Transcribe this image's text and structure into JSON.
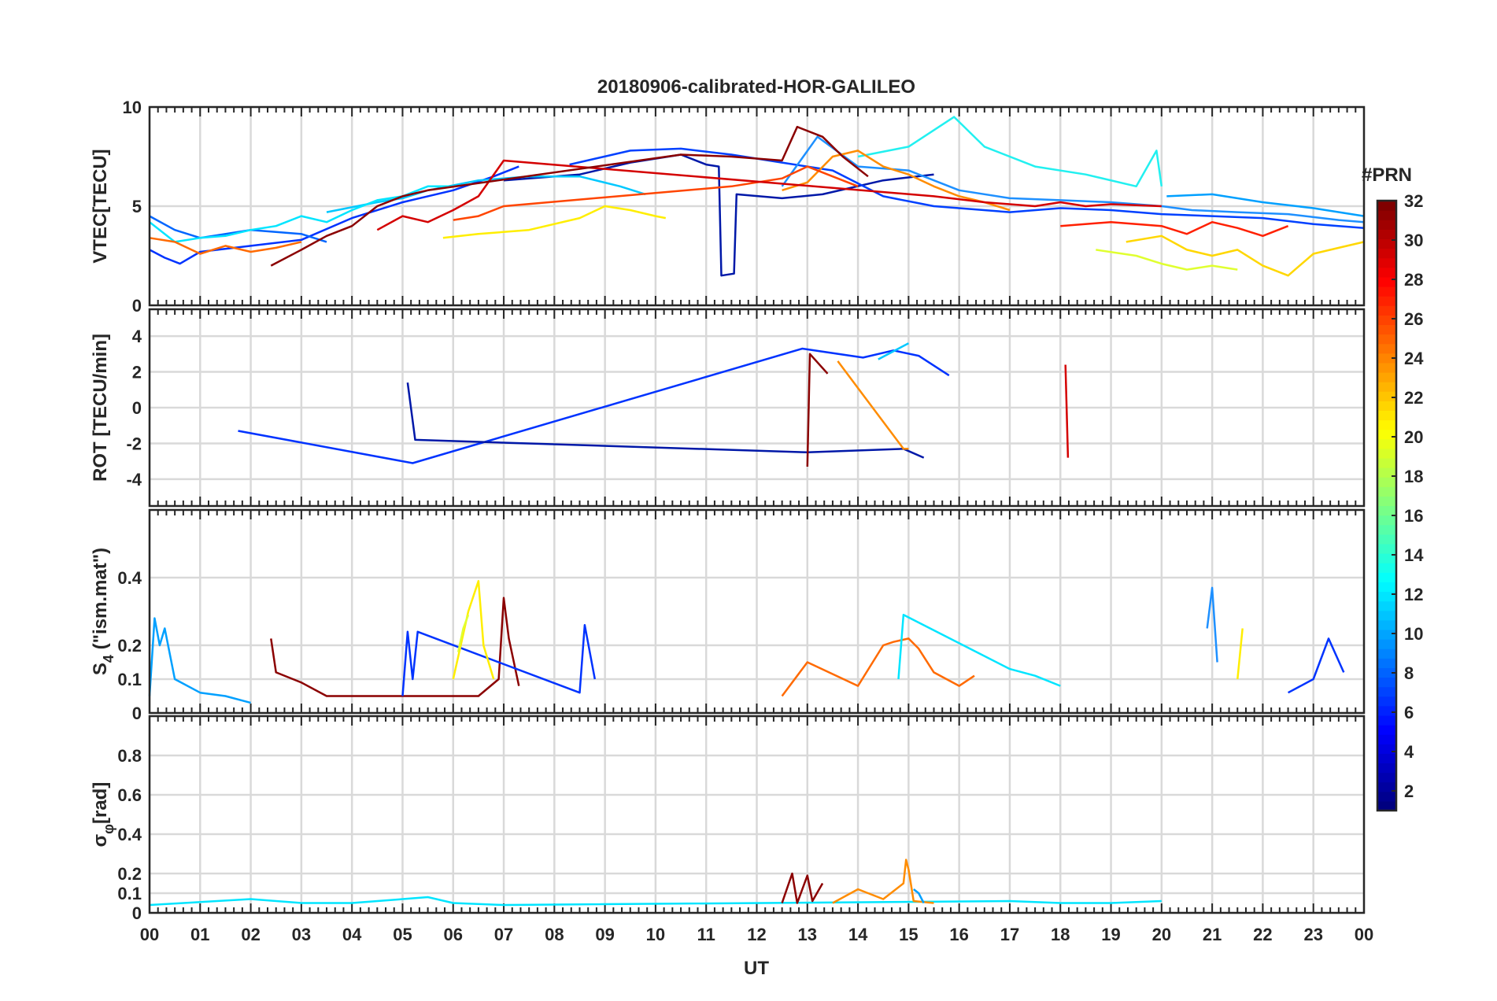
{
  "chart_data": {
    "type": "line",
    "title": "20180906-calibrated-HOR-GALILEO",
    "xlabel": "UT",
    "x_ticks": [
      "00",
      "01",
      "02",
      "03",
      "04",
      "05",
      "06",
      "07",
      "08",
      "09",
      "10",
      "11",
      "12",
      "13",
      "14",
      "15",
      "16",
      "17",
      "18",
      "19",
      "20",
      "21",
      "22",
      "23",
      "00"
    ],
    "x_range_hours": [
      0,
      24
    ],
    "grid": true,
    "colorbar": {
      "label": "#PRN",
      "range": [
        1,
        32
      ],
      "ticks": [
        "2",
        "4",
        "6",
        "8",
        "10",
        "12",
        "14",
        "16",
        "18",
        "20",
        "22",
        "24",
        "26",
        "28",
        "30",
        "32"
      ],
      "colormap": "jet",
      "placement": "right"
    },
    "panels": [
      {
        "id": "vtec",
        "ylabel": "VTEC[TECU]",
        "ylim": [
          0,
          10
        ],
        "y_ticks": [
          "0",
          "5",
          "10"
        ],
        "series": [
          {
            "prn": 2,
            "color": "#0018a8",
            "x": [
              7.0,
              8.5,
              9.5,
              10.5,
              11.0,
              11.25,
              11.3,
              11.55,
              11.6,
              12.5,
              13.3,
              14.5,
              15.5
            ],
            "y": [
              6.3,
              6.6,
              7.2,
              7.6,
              7.1,
              7.0,
              1.5,
              1.6,
              5.6,
              5.4,
              5.6,
              6.3,
              6.6
            ]
          },
          {
            "prn": 3,
            "color": "#0033ff",
            "x": [
              0.0,
              0.3,
              0.6,
              1.0,
              2.0,
              3.0,
              4.0,
              5.0,
              6.0,
              6.8,
              7.3
            ],
            "y": [
              2.8,
              2.4,
              2.1,
              2.7,
              3.0,
              3.3,
              4.4,
              5.2,
              5.8,
              6.5,
              7.0
            ]
          },
          {
            "prn": 4,
            "color": "#0040ff",
            "x": [
              8.3,
              9.5,
              10.5,
              11.5,
              12.5,
              13.5,
              14.5,
              15.5,
              17.0,
              18.0,
              19.0,
              20.0,
              21.0,
              22.0,
              23.0,
              24.0
            ],
            "y": [
              7.1,
              7.8,
              7.9,
              7.6,
              7.2,
              6.8,
              5.5,
              5.0,
              4.7,
              4.9,
              4.8,
              4.6,
              4.5,
              4.4,
              4.1,
              3.9
            ]
          },
          {
            "prn": 6,
            "color": "#0066ff",
            "x": [
              0.0,
              0.5,
              1.0,
              2.0,
              3.0,
              3.5
            ],
            "y": [
              4.5,
              3.8,
              3.4,
              3.8,
              3.6,
              3.2
            ]
          },
          {
            "prn": 9,
            "color": "#1e90ff",
            "x": [
              12.5,
              13.2,
              14.0,
              15.0,
              16.0,
              17.0,
              18.0,
              19.0,
              20.0,
              20.6,
              21.5,
              22.5,
              23.5,
              24.0
            ],
            "y": [
              6.0,
              8.5,
              7.0,
              6.8,
              5.8,
              5.4,
              5.3,
              5.2,
              5.0,
              4.8,
              4.7,
              4.6,
              4.3,
              4.2
            ]
          },
          {
            "prn": 10,
            "color": "#00a0ff",
            "x": [
              20.1,
              21.0,
              22.0,
              23.0,
              24.0
            ],
            "y": [
              5.5,
              5.6,
              5.2,
              4.9,
              4.5
            ]
          },
          {
            "prn": 12,
            "color": "#00c8ff",
            "x": [
              3.5,
              4.5,
              5.0,
              5.5,
              6.5,
              7.5,
              8.5,
              9.3,
              9.8
            ],
            "y": [
              4.7,
              5.2,
              5.4,
              5.8,
              6.3,
              6.5,
              6.5,
              6.0,
              5.6
            ]
          },
          {
            "prn": 13,
            "color": "#00e5ff",
            "x": [
              0.0,
              0.5,
              1.0,
              1.5,
              2.0,
              2.5,
              3.0,
              3.5,
              4.0,
              4.5,
              5.0,
              5.5,
              6.0
            ],
            "y": [
              4.2,
              3.2,
              3.4,
              3.5,
              3.8,
              4.0,
              4.5,
              4.2,
              4.8,
              5.3,
              5.5,
              6.0,
              6.0
            ]
          },
          {
            "prn": 14,
            "color": "#22f0f0",
            "x": [
              14.0,
              15.0,
              15.9,
              16.5,
              17.5,
              18.5,
              19.5,
              19.9,
              20.0
            ],
            "y": [
              7.5,
              8.0,
              9.5,
              8.0,
              7.0,
              6.6,
              6.0,
              7.8,
              6.0
            ]
          },
          {
            "prn": 20,
            "color": "#ffee00",
            "x": [
              5.8,
              6.5,
              7.5,
              8.5,
              9.0,
              9.5,
              10.0,
              10.2
            ],
            "y": [
              3.4,
              3.6,
              3.8,
              4.4,
              5.0,
              4.8,
              4.5,
              4.4
            ]
          },
          {
            "prn": 21,
            "color": "#ffd700",
            "x": [
              19.3,
              20.0,
              20.5,
              21.0,
              21.5,
              22.0,
              22.5,
              23.0,
              23.5,
              24.0
            ],
            "y": [
              3.2,
              3.5,
              2.8,
              2.5,
              2.8,
              2.0,
              1.5,
              2.6,
              2.9,
              3.2
            ]
          },
          {
            "prn": 19,
            "color": "#e0ff30",
            "x": [
              18.7,
              19.5,
              20.0,
              20.5,
              21.0,
              21.5
            ],
            "y": [
              2.8,
              2.5,
              2.1,
              1.8,
              2.0,
              1.8
            ]
          },
          {
            "prn": 23,
            "color": "#ff8c00",
            "x": [
              12.5,
              13.0,
              13.5,
              14.0,
              14.5,
              15.0,
              15.5,
              16.0,
              16.5,
              17.0
            ],
            "y": [
              5.8,
              6.2,
              7.5,
              7.8,
              7.0,
              6.6,
              6.0,
              5.5,
              5.2,
              4.8
            ]
          },
          {
            "prn": 24,
            "color": "#ff6a00",
            "x": [
              0.0,
              0.5,
              1.0,
              1.5,
              2.0,
              2.5,
              3.0
            ],
            "y": [
              3.4,
              3.2,
              2.6,
              3.0,
              2.7,
              2.9,
              3.2
            ]
          },
          {
            "prn": 26,
            "color": "#ff4500",
            "x": [
              6.0,
              6.5,
              7.0,
              11.5,
              12.5,
              13.0,
              13.5,
              14.0
            ],
            "y": [
              4.3,
              4.5,
              5.0,
              6.0,
              6.4,
              7.0,
              6.5,
              6.0
            ]
          },
          {
            "prn": 28,
            "color": "#ff2000",
            "x": [
              18.0,
              19.0,
              20.0,
              20.5,
              21.0,
              21.5,
              22.0,
              22.5
            ],
            "y": [
              4.0,
              4.2,
              4.0,
              3.6,
              4.2,
              3.9,
              3.5,
              4.0
            ]
          },
          {
            "prn": 30,
            "color": "#d40000",
            "x": [
              4.5,
              5.0,
              5.5,
              6.0,
              6.5,
              7.0,
              15.5,
              16.5,
              17.5,
              18.0,
              18.5,
              19.0,
              20.0
            ],
            "y": [
              3.8,
              4.5,
              4.2,
              4.8,
              5.5,
              7.3,
              5.5,
              5.2,
              5.0,
              5.2,
              5.0,
              5.1,
              5.0
            ]
          },
          {
            "prn": 32,
            "color": "#8b0000",
            "x": [
              2.4,
              3.0,
              3.5,
              4.0,
              4.5,
              5.0,
              5.5,
              10.5,
              11.5,
              12.5,
              12.8,
              13.3,
              13.7,
              14.2
            ],
            "y": [
              2.0,
              2.8,
              3.5,
              4.0,
              5.0,
              5.5,
              5.8,
              7.6,
              7.5,
              7.3,
              9.0,
              8.5,
              7.5,
              6.5
            ]
          }
        ]
      },
      {
        "id": "rot",
        "ylabel": "ROT [TECU/min]",
        "ylim": [
          -5.5,
          5.5
        ],
        "y_ticks": [
          "-4",
          "-2",
          "0",
          "2",
          "4"
        ],
        "series": [
          {
            "prn": 3,
            "color": "#0033ff",
            "x": [
              1.75,
              5.2,
              12.9,
              14.1,
              14.7,
              15.2,
              15.8
            ],
            "y": [
              -1.3,
              -3.1,
              3.3,
              2.8,
              3.2,
              2.9,
              1.8
            ]
          },
          {
            "prn": 2,
            "color": "#0018a8",
            "x": [
              5.1,
              5.25,
              13.0,
              14.9,
              15.3
            ],
            "y": [
              1.4,
              -1.8,
              -2.5,
              -2.3,
              -2.8
            ]
          },
          {
            "prn": 12,
            "color": "#00c8ff",
            "x": [
              14.4,
              15.0
            ],
            "y": [
              2.7,
              3.6
            ]
          },
          {
            "prn": 23,
            "color": "#ff8c00",
            "x": [
              13.6,
              14.9,
              15.0
            ],
            "y": [
              2.6,
              -2.3,
              -2.3
            ]
          },
          {
            "prn": 30,
            "color": "#d40000",
            "x": [
              18.1,
              18.15
            ],
            "y": [
              2.4,
              -2.8
            ]
          },
          {
            "prn": 32,
            "color": "#8b0000",
            "x": [
              13.0,
              13.05,
              13.4
            ],
            "y": [
              -3.3,
              3.0,
              1.9
            ]
          }
        ]
      },
      {
        "id": "s4",
        "ylabel": "S4 (\"ism.mat\")",
        "ylabel_main": "S",
        "ylabel_sub": "4",
        "ylabel_rest": " (\"ism.mat\")",
        "ylim": [
          0,
          0.6
        ],
        "y_ticks": [
          "0",
          "0.1",
          "0.2",
          "0.4"
        ],
        "series": [
          {
            "prn": 10,
            "color": "#00a0ff",
            "x": [
              0.0,
              0.1,
              0.2,
              0.3,
              0.5,
              1.0,
              1.5,
              2.0
            ],
            "y": [
              0.05,
              0.28,
              0.2,
              0.25,
              0.1,
              0.06,
              0.05,
              0.03
            ]
          },
          {
            "prn": 32,
            "color": "#8b0000",
            "x": [
              2.4,
              2.5,
              3.0,
              3.5,
              6.5,
              6.9,
              7.0,
              7.1,
              7.3
            ],
            "y": [
              0.22,
              0.12,
              0.09,
              0.05,
              0.05,
              0.1,
              0.34,
              0.22,
              0.08
            ]
          },
          {
            "prn": 3,
            "color": "#0033ff",
            "x": [
              5.0,
              5.1,
              5.2,
              5.3,
              8.5,
              8.6,
              8.8
            ],
            "y": [
              0.05,
              0.24,
              0.1,
              0.24,
              0.06,
              0.26,
              0.1
            ]
          },
          {
            "prn": 20,
            "color": "#ffee00",
            "x": [
              6.0,
              6.3,
              6.5,
              6.6,
              6.8
            ],
            "y": [
              0.1,
              0.3,
              0.39,
              0.2,
              0.1
            ]
          },
          {
            "prn": 19,
            "color": "#e0ff30",
            "x": [
              6.1,
              6.2,
              6.3
            ],
            "y": [
              0.18,
              0.25,
              0.29
            ]
          },
          {
            "prn": 24,
            "color": "#ff6a00",
            "x": [
              12.5,
              13.0,
              14.0,
              14.5,
              14.7,
              15.0,
              15.2,
              15.5,
              16.0,
              16.3
            ],
            "y": [
              0.05,
              0.15,
              0.08,
              0.2,
              0.21,
              0.22,
              0.19,
              0.12,
              0.08,
              0.11
            ]
          },
          {
            "prn": 13,
            "color": "#00e5ff",
            "x": [
              14.8,
              14.9,
              17.0,
              17.5,
              18.0
            ],
            "y": [
              0.1,
              0.29,
              0.13,
              0.11,
              0.08
            ]
          },
          {
            "prn": 9,
            "color": "#1e90ff",
            "x": [
              20.9,
              21.0,
              21.1
            ],
            "y": [
              0.25,
              0.37,
              0.15
            ]
          },
          {
            "prn": 20,
            "color": "#ffee00",
            "x": [
              21.5,
              21.6
            ],
            "y": [
              0.1,
              0.25
            ]
          },
          {
            "prn": 3,
            "color": "#0033ff",
            "x": [
              22.5,
              23.0,
              23.3,
              23.6
            ],
            "y": [
              0.06,
              0.1,
              0.22,
              0.12
            ]
          }
        ]
      },
      {
        "id": "sigma_phi",
        "ylabel": "σφ[rad]",
        "ylabel_main": "σ",
        "ylabel_sub": "φ",
        "ylabel_rest": "[rad]",
        "ylim": [
          0,
          1.0
        ],
        "y_ticks": [
          "0",
          "0.1",
          "0.2",
          "0.4",
          "0.6",
          "0.8"
        ],
        "series": [
          {
            "prn": 13,
            "color": "#00e5ff",
            "x": [
              0.0,
              2.0,
              3.0,
              4.0,
              5.0,
              5.5,
              6.0,
              7.0,
              17.0,
              18.0,
              19.0,
              20.0
            ],
            "y": [
              0.04,
              0.07,
              0.05,
              0.05,
              0.07,
              0.08,
              0.05,
              0.04,
              0.06,
              0.05,
              0.05,
              0.06
            ]
          },
          {
            "prn": 32,
            "color": "#8b0000",
            "x": [
              12.5,
              12.7,
              12.8,
              13.0,
              13.1,
              13.3
            ],
            "y": [
              0.05,
              0.2,
              0.05,
              0.19,
              0.06,
              0.15
            ]
          },
          {
            "prn": 23,
            "color": "#ff8c00",
            "x": [
              13.5,
              14.0,
              14.5,
              14.9,
              14.95,
              15.0,
              15.1,
              15.5
            ],
            "y": [
              0.05,
              0.12,
              0.07,
              0.15,
              0.27,
              0.22,
              0.06,
              0.05
            ]
          },
          {
            "prn": 10,
            "color": "#00a0ff",
            "x": [
              15.1,
              15.2,
              15.3
            ],
            "y": [
              0.12,
              0.1,
              0.05
            ]
          }
        ]
      }
    ]
  }
}
